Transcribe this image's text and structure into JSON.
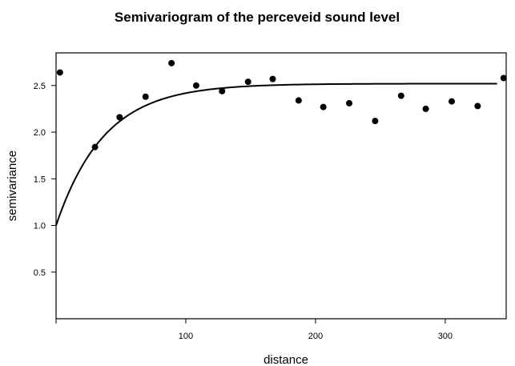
{
  "chart_data": {
    "type": "scatter",
    "title": "Semivariogram of the perceveid sound level",
    "xlabel": "distance",
    "ylabel": "semivariance",
    "xlim": [
      0,
      347
    ],
    "ylim": [
      0,
      2.85
    ],
    "xticks": [
      100,
      200,
      300
    ],
    "xtick_labels": [
      "100",
      "200",
      "300"
    ],
    "yticks": [
      0.5,
      1.0,
      1.5,
      2.0,
      2.5
    ],
    "ytick_labels": [
      "0.5",
      "1.0",
      "1.5",
      "2.0",
      "2.5"
    ],
    "grid": false,
    "points": {
      "x": [
        3,
        30,
        49,
        69,
        89,
        108,
        128,
        148,
        167,
        187,
        206,
        226,
        246,
        266,
        285,
        305,
        325,
        345
      ],
      "y": [
        2.64,
        1.84,
        2.16,
        2.38,
        2.74,
        2.5,
        2.44,
        2.54,
        2.57,
        2.34,
        2.27,
        2.31,
        2.12,
        2.39,
        2.25,
        2.33,
        2.28,
        2.58
      ]
    },
    "model_curve": {
      "type": "exponential",
      "nugget": 1.0,
      "partial_sill": 1.52,
      "range": 37,
      "x_max": 340
    },
    "colors": {
      "points": "#000000",
      "curve": "#000000",
      "frame": "#000000"
    }
  }
}
